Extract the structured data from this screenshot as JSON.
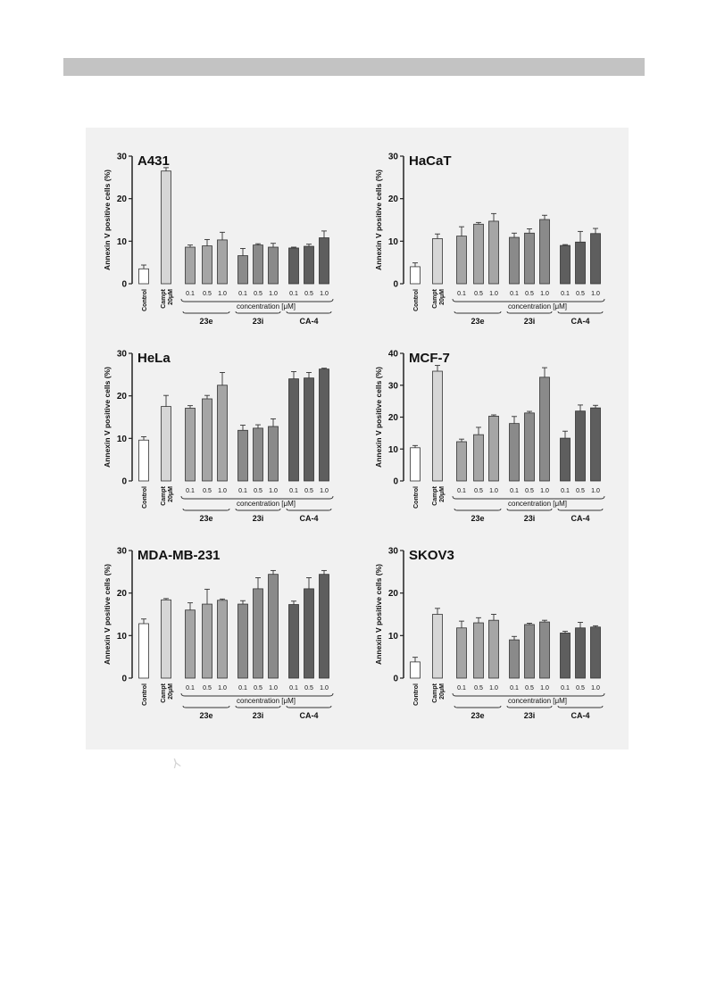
{
  "figure": {
    "marker_glyph": "⅄",
    "y_axis_label": "Annexin V positive cells (%)",
    "concentration_label": "concentration [μM]",
    "control_label": "Control",
    "campt_label_line1": "Campt",
    "campt_label_line2": "20μM",
    "dose_labels": [
      "0.1",
      "0.5",
      "1.0"
    ],
    "group_labels": [
      "23e",
      "23i",
      "CA-4"
    ],
    "colors": {
      "control": "#ffffff",
      "campt": "#d6d6d6",
      "23e": "#a5a5a5",
      "23i": "#8a8a8a",
      "CA-4": "#5e5e5e",
      "panel_background": "#f1f1f1",
      "header_bar": "#c3c3c3"
    }
  },
  "chart_data": [
    {
      "type": "bar",
      "title": "A431",
      "ylabel": "Annexin V positive cells (%)",
      "ylim": [
        0,
        30
      ],
      "yticks": [
        0,
        10,
        20,
        30
      ],
      "categories": [
        "Control",
        "Campt 20μM",
        "23e 0.1",
        "23e 0.5",
        "23e 1.0",
        "23i 0.1",
        "23i 0.5",
        "23i 1.0",
        "CA-4 0.1",
        "CA-4 0.5",
        "CA-4 1.0"
      ],
      "values": [
        3.5,
        26.5,
        8.6,
        8.9,
        10.3,
        6.6,
        9.1,
        8.6,
        8.4,
        8.8,
        10.8
      ],
      "errors": [
        0.9,
        0.8,
        0.5,
        1.5,
        1.8,
        1.7,
        0.3,
        0.9,
        0.2,
        0.5,
        1.6
      ]
    },
    {
      "type": "bar",
      "title": "HaCaT",
      "ylabel": "Annexin V positive cells (%)",
      "ylim": [
        0,
        30
      ],
      "yticks": [
        0,
        10,
        20,
        30
      ],
      "categories": [
        "Control",
        "Campt 20μM",
        "23e 0.1",
        "23e 0.5",
        "23e 1.0",
        "23i 0.1",
        "23i 0.5",
        "23i 1.0",
        "CA-4 0.1",
        "CA-4 0.5",
        "CA-4 1.0"
      ],
      "values": [
        4.0,
        10.6,
        11.2,
        14.0,
        14.7,
        10.9,
        11.9,
        15.1,
        9.0,
        9.8,
        11.8
      ],
      "errors": [
        0.9,
        1.1,
        2.2,
        0.4,
        1.8,
        1.0,
        1.0,
        1.0,
        0.2,
        2.5,
        1.2
      ]
    },
    {
      "type": "bar",
      "title": "HeLa",
      "ylabel": "Annexin V positive cells (%)",
      "ylim": [
        0,
        30
      ],
      "yticks": [
        0,
        10,
        20,
        30
      ],
      "categories": [
        "Control",
        "Campt 20μM",
        "23e 0.1",
        "23e 0.5",
        "23e 1.0",
        "23i 0.1",
        "23i 0.5",
        "23i 1.0",
        "CA-4 0.1",
        "CA-4 0.5",
        "CA-4 1.0"
      ],
      "values": [
        9.6,
        17.5,
        17.1,
        19.3,
        22.5,
        11.9,
        12.4,
        12.8,
        24.0,
        24.2,
        26.3
      ],
      "errors": [
        0.8,
        2.6,
        0.6,
        0.8,
        3.0,
        1.2,
        0.8,
        1.8,
        1.7,
        1.3,
        0.2
      ]
    },
    {
      "type": "bar",
      "title": "MCF-7",
      "ylabel": "Annexin V positive cells (%)",
      "ylim": [
        0,
        40
      ],
      "yticks": [
        0,
        10,
        20,
        30,
        40
      ],
      "categories": [
        "Control",
        "Campt 20μM",
        "23e 0.1",
        "23e 0.5",
        "23e 1.0",
        "23i 0.1",
        "23i 0.5",
        "23i 1.0",
        "CA-4 0.1",
        "CA-4 0.5",
        "CA-4 1.0"
      ],
      "values": [
        10.4,
        34.4,
        12.3,
        14.5,
        20.3,
        18.0,
        21.3,
        32.5,
        13.4,
        21.9,
        22.9
      ],
      "errors": [
        0.7,
        1.8,
        0.8,
        2.3,
        0.4,
        2.2,
        0.5,
        3.0,
        2.2,
        1.9,
        0.8
      ]
    },
    {
      "type": "bar",
      "title": "MDA-MB-231",
      "ylabel": "Annexin V positive cells (%)",
      "ylim": [
        0,
        30
      ],
      "yticks": [
        0,
        10,
        20,
        30
      ],
      "categories": [
        "Control",
        "Campt 20μM",
        "23e 0.1",
        "23e 0.5",
        "23e 1.0",
        "23i 0.1",
        "23i 0.5",
        "23i 1.0",
        "CA-4 0.1",
        "CA-4 0.5",
        "CA-4 1.0"
      ],
      "values": [
        12.8,
        18.4,
        16.0,
        17.4,
        18.3,
        17.4,
        21.0,
        24.4,
        17.3,
        21.0,
        24.4
      ],
      "errors": [
        1.1,
        0.3,
        1.7,
        3.5,
        0.3,
        0.8,
        2.6,
        0.9,
        0.8,
        2.6,
        0.9
      ]
    },
    {
      "type": "bar",
      "title": "SKOV3",
      "ylabel": "Annexin V positive cells (%)",
      "ylim": [
        0,
        30
      ],
      "yticks": [
        0,
        10,
        20,
        30
      ],
      "categories": [
        "Control",
        "Campt 20μM",
        "23e 0.1",
        "23e 0.5",
        "23e 1.0",
        "23i 0.1",
        "23i 0.5",
        "23i 1.0",
        "CA-4 0.1",
        "CA-4 0.5",
        "CA-4 1.0"
      ],
      "values": [
        3.8,
        15.0,
        11.8,
        13.0,
        13.6,
        9.0,
        12.6,
        13.2,
        10.6,
        11.8,
        12.0
      ],
      "errors": [
        1.1,
        1.4,
        1.6,
        1.2,
        1.4,
        0.8,
        0.3,
        0.4,
        0.4,
        1.3,
        0.3
      ]
    }
  ]
}
